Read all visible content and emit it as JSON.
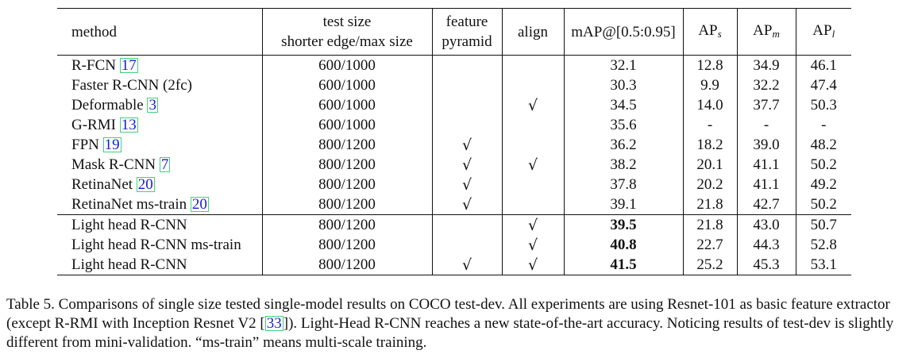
{
  "table": {
    "headers": {
      "method": "method",
      "test_size_line1": "test size",
      "test_size_line2": "shorter edge/max size",
      "feature_line1": "feature",
      "feature_line2": "pyramid",
      "align": "align",
      "map": "mAP@[0.5:0.95]",
      "aps_base": "AP",
      "aps_sub": "s",
      "apm_base": "AP",
      "apm_sub": "m",
      "apl_base": "AP",
      "apl_sub": "l"
    },
    "check_symbol": "√",
    "group1": [
      {
        "method": "R-FCN",
        "ref": "17",
        "size": "600/1000",
        "fp": "",
        "align": "",
        "map": "32.1",
        "aps": "12.8",
        "apm": "34.9",
        "apl": "46.1"
      },
      {
        "method": "Faster R-CNN (2fc)",
        "ref": "",
        "size": "600/1000",
        "fp": "",
        "align": "",
        "map": "30.3",
        "aps": "9.9",
        "apm": "32.2",
        "apl": "47.4"
      },
      {
        "method": "Deformable",
        "ref": "3",
        "size": "600/1000",
        "fp": "",
        "align": "√",
        "map": "34.5",
        "aps": "14.0",
        "apm": "37.7",
        "apl": "50.3"
      },
      {
        "method": "G-RMI",
        "ref": "13",
        "size": "600/1000",
        "fp": "",
        "align": "",
        "map": "35.6",
        "aps": "-",
        "apm": "-",
        "apl": "-"
      },
      {
        "method": "FPN",
        "ref": "19",
        "size": "800/1200",
        "fp": "√",
        "align": "",
        "map": "36.2",
        "aps": "18.2",
        "apm": "39.0",
        "apl": "48.2"
      },
      {
        "method": "Mask R-CNN",
        "ref": "7",
        "size": "800/1200",
        "fp": "√",
        "align": "√",
        "map": "38.2",
        "aps": "20.1",
        "apm": "41.1",
        "apl": "50.2"
      },
      {
        "method": "RetinaNet",
        "ref": "20",
        "size": "800/1200",
        "fp": "√",
        "align": "",
        "map": "37.8",
        "aps": "20.2",
        "apm": "41.1",
        "apl": "49.2"
      },
      {
        "method": "RetinaNet ms-train",
        "ref": "20",
        "size": "800/1200",
        "fp": "√",
        "align": "",
        "map": "39.1",
        "aps": "21.8",
        "apm": "42.7",
        "apl": "50.2"
      }
    ],
    "group2": [
      {
        "method": "Light head R-CNN",
        "ref": "",
        "size": "800/1200",
        "fp": "",
        "align": "√",
        "map": "39.5",
        "aps": "21.8",
        "apm": "43.0",
        "apl": "50.7"
      },
      {
        "method": "Light head R-CNN ms-train",
        "ref": "",
        "size": "800/1200",
        "fp": "",
        "align": "√",
        "map": "40.8",
        "aps": "22.7",
        "apm": "44.3",
        "apl": "52.8"
      },
      {
        "method": "Light head R-CNN",
        "ref": "",
        "size": "800/1200",
        "fp": "√",
        "align": "√",
        "map": "41.5",
        "aps": "25.2",
        "apm": "45.3",
        "apl": "53.1"
      }
    ]
  },
  "caption": {
    "part1": "Table 5. Comparisons of single size tested single-model results on COCO test-dev. All experiments are using Resnet-101 as basic feature extractor (except R-RMI with Inception Resnet V2 [",
    "ref": "33",
    "part2": "]). Light-Head R-CNN reaches a new state-of-the-art accuracy. Noticing results of test-dev is slightly different from mini-validation. “ms-train” means multi-scale training."
  },
  "colors": {
    "text": "#111111",
    "link": "#1a1ad6",
    "ref_box": "#43d17a"
  }
}
